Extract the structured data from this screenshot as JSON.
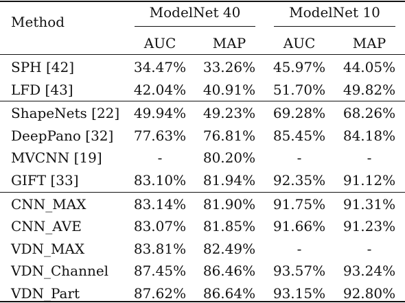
{
  "header": {
    "method_label": "Method",
    "group1": "ModelNet 40",
    "group2": "ModelNet 10",
    "sub": [
      "AUC",
      "MAP",
      "AUC",
      "MAP"
    ]
  },
  "sections": [
    [
      {
        "method": "SPH [42]",
        "values": [
          "34.47%",
          "33.26%",
          "45.97%",
          "44.05%"
        ]
      },
      {
        "method": "LFD [43]",
        "values": [
          "42.04%",
          "40.91%",
          "51.70%",
          "49.82%"
        ]
      }
    ],
    [
      {
        "method": "ShapeNets [22]",
        "values": [
          "49.94%",
          "49.23%",
          "69.28%",
          "68.26%"
        ]
      },
      {
        "method": "DeepPano [32]",
        "values": [
          "77.63%",
          "76.81%",
          "85.45%",
          "84.18%"
        ]
      },
      {
        "method": "MVCNN [19]",
        "values": [
          "-",
          "80.20%",
          "-",
          "-"
        ]
      },
      {
        "method": "GIFT [33]",
        "values": [
          "83.10%",
          "81.94%",
          "92.35%",
          "91.12%"
        ]
      }
    ],
    [
      {
        "method": "CNN_MAX",
        "values": [
          "83.14%",
          "81.90%",
          "91.75%",
          "91.31%"
        ]
      },
      {
        "method": "CNN_AVE",
        "values": [
          "83.07%",
          "81.85%",
          "91.66%",
          "91.23%"
        ]
      },
      {
        "method": "VDN_MAX",
        "values": [
          "83.81%",
          "82.49%",
          "-",
          "-"
        ]
      },
      {
        "method": "VDN_Channel",
        "values": [
          "87.45%",
          "86.46%",
          "93.57%",
          "93.24%"
        ]
      },
      {
        "method": "VDN_Part",
        "values": [
          "87.62%",
          "86.64%",
          "93.15%",
          "92.80%"
        ]
      }
    ]
  ]
}
